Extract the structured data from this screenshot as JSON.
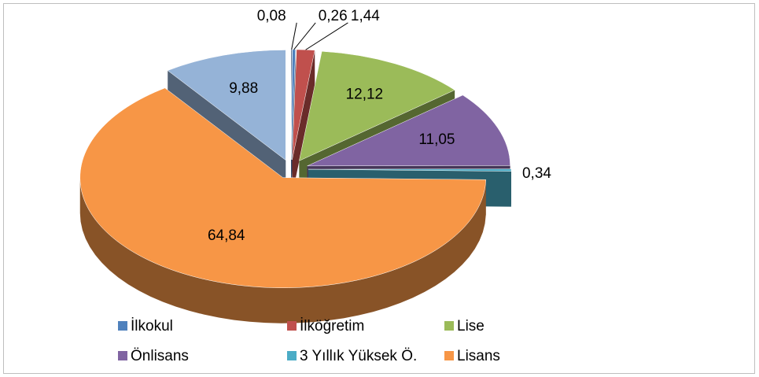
{
  "chart_data": {
    "type": "pie",
    "categories": [
      null,
      "İlkokul",
      "İlköğretim",
      "Lise",
      "Önlisans",
      "3 Yıllık Yüksek Ö.",
      "Lisans",
      null
    ],
    "values": [
      0.08,
      0.26,
      1.44,
      12.12,
      11.05,
      0.34,
      64.84,
      9.88
    ],
    "value_labels": [
      "0,08",
      "0,26",
      "1,44",
      "12,12",
      "11,05",
      "0,34",
      "64,84",
      "9,88"
    ],
    "colors": [
      "#1f3864",
      "#4f81bd",
      "#c0504d",
      "#9bbb59",
      "#8064a2",
      "#4bacc6",
      "#f79646",
      "#95b3d7"
    ],
    "legend": "bottom"
  }
}
